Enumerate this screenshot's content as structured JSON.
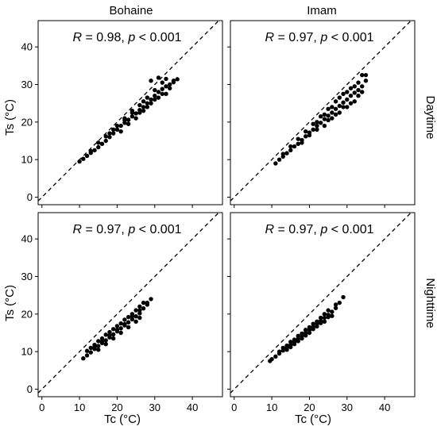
{
  "figure": {
    "x_axis_title": "Tc (°C)",
    "y_axis_title": "Ts (°C)",
    "column_titles": [
      "Bohaine",
      "Imam"
    ],
    "row_titles": [
      "Daytime",
      "Nighttime"
    ]
  },
  "chart_data": [
    {
      "type": "scatter",
      "site": "Bohaine",
      "period": "Daytime",
      "annotation": {
        "r_text": "R = 0.98, ",
        "p_label": "p",
        "p_text": " < 0.001"
      },
      "xlim": [
        -1,
        48
      ],
      "ylim": [
        -2,
        47
      ],
      "xticks": [
        0,
        10,
        20,
        30,
        40
      ],
      "yticks": [
        0,
        10,
        20,
        30,
        40
      ],
      "reference_line": "1:1 dashed",
      "x_range_observed": [
        10,
        36
      ],
      "y_range_observed": [
        9,
        32
      ],
      "points": [
        [
          10,
          9.5
        ],
        [
          11,
          10.2
        ],
        [
          12,
          11
        ],
        [
          13,
          11.8
        ],
        [
          14,
          12.5
        ],
        [
          15,
          13.3
        ],
        [
          16,
          14.2
        ],
        [
          17,
          15
        ],
        [
          18,
          16
        ],
        [
          19,
          17
        ],
        [
          20,
          18
        ],
        [
          21,
          19
        ],
        [
          22,
          19.8
        ],
        [
          23,
          20.6
        ],
        [
          24,
          21.5
        ],
        [
          25,
          22.3
        ],
        [
          26,
          23.2
        ],
        [
          27,
          24
        ],
        [
          28,
          25
        ],
        [
          29,
          26
        ],
        [
          30,
          27
        ],
        [
          31,
          28
        ],
        [
          32,
          28.8
        ],
        [
          33,
          29.5
        ],
        [
          34,
          30
        ],
        [
          35,
          30.6
        ],
        [
          36,
          31.4
        ],
        [
          18,
          17
        ],
        [
          20,
          19
        ],
        [
          22,
          21
        ],
        [
          24,
          22.5
        ],
        [
          26,
          24.5
        ],
        [
          28,
          26.5
        ],
        [
          30,
          28.5
        ],
        [
          32,
          30.5
        ],
        [
          29,
          31
        ],
        [
          31,
          31.8
        ],
        [
          25,
          21
        ],
        [
          27,
          23
        ],
        [
          29,
          25
        ],
        [
          31,
          26.5
        ],
        [
          33,
          27.5
        ],
        [
          34,
          29
        ],
        [
          35,
          31
        ],
        [
          21,
          17.5
        ],
        [
          23,
          19.5
        ],
        [
          17,
          16.2
        ],
        [
          15,
          14.5
        ],
        [
          13,
          12.3
        ],
        [
          19,
          18
        ],
        [
          26,
          22.5
        ],
        [
          28,
          24
        ],
        [
          30,
          26
        ],
        [
          32,
          27.5
        ],
        [
          33,
          31.5
        ],
        [
          24,
          23
        ],
        [
          22,
          20.5
        ],
        [
          27,
          25.5
        ]
      ]
    },
    {
      "type": "scatter",
      "site": "Imam",
      "period": "Daytime",
      "annotation": {
        "r_text": "R = 0.97, ",
        "p_label": "p",
        "p_text": " < 0.001"
      },
      "xlim": [
        -1,
        48
      ],
      "ylim": [
        -2,
        47
      ],
      "xticks": [
        0,
        10,
        20,
        30,
        40
      ],
      "yticks": [
        0,
        10,
        20,
        30,
        40
      ],
      "reference_line": "1:1 dashed",
      "x_range_observed": [
        11,
        35
      ],
      "y_range_observed": [
        9,
        33
      ],
      "points": [
        [
          11,
          9
        ],
        [
          12,
          10
        ],
        [
          13,
          10.8
        ],
        [
          14,
          11.7
        ],
        [
          15,
          12.5
        ],
        [
          16,
          13.5
        ],
        [
          17,
          14.2
        ],
        [
          18,
          15.2
        ],
        [
          19,
          16.2
        ],
        [
          20,
          17.2
        ],
        [
          21,
          18
        ],
        [
          22,
          19
        ],
        [
          23,
          19.8
        ],
        [
          24,
          20.8
        ],
        [
          25,
          21.7
        ],
        [
          26,
          22.5
        ],
        [
          27,
          23.5
        ],
        [
          28,
          24.3
        ],
        [
          29,
          25.2
        ],
        [
          30,
          26
        ],
        [
          31,
          27
        ],
        [
          32,
          27.8
        ],
        [
          33,
          28.5
        ],
        [
          34,
          29.5
        ],
        [
          35,
          31
        ],
        [
          34,
          32.5
        ],
        [
          33,
          30.5
        ],
        [
          19,
          17.5
        ],
        [
          21,
          19.5
        ],
        [
          23,
          21.5
        ],
        [
          25,
          23.5
        ],
        [
          27,
          25.5
        ],
        [
          29,
          27.5
        ],
        [
          31,
          29
        ],
        [
          24,
          19
        ],
        [
          26,
          21
        ],
        [
          28,
          22.5
        ],
        [
          30,
          24
        ],
        [
          32,
          25.5
        ],
        [
          33,
          27
        ],
        [
          34,
          28
        ],
        [
          35,
          32.5
        ],
        [
          18,
          14.5
        ],
        [
          20,
          16.5
        ],
        [
          22,
          18
        ],
        [
          17,
          15.5
        ],
        [
          15,
          13.5
        ],
        [
          13,
          11.5
        ],
        [
          26,
          24
        ],
        [
          28,
          26.5
        ],
        [
          30,
          28
        ],
        [
          32,
          29.5
        ],
        [
          25,
          20.5
        ],
        [
          27,
          22
        ],
        [
          29,
          24
        ],
        [
          31,
          25
        ],
        [
          22,
          20
        ],
        [
          24,
          22
        ]
      ]
    },
    {
      "type": "scatter",
      "site": "Bohaine",
      "period": "Nighttime",
      "annotation": {
        "r_text": "R = 0.97, ",
        "p_label": "p",
        "p_text": " < 0.001"
      },
      "xlim": [
        -1,
        48
      ],
      "ylim": [
        -2,
        47
      ],
      "xticks": [
        0,
        10,
        20,
        30,
        40
      ],
      "yticks": [
        0,
        10,
        20,
        30,
        40
      ],
      "reference_line": "1:1 dashed",
      "x_range_observed": [
        11,
        29
      ],
      "y_range_observed": [
        8,
        24
      ],
      "points": [
        [
          11,
          8.2
        ],
        [
          12,
          9
        ],
        [
          13,
          9.8
        ],
        [
          14,
          10.7
        ],
        [
          15,
          11.5
        ],
        [
          16,
          12.3
        ],
        [
          17,
          13
        ],
        [
          18,
          13.8
        ],
        [
          19,
          14.6
        ],
        [
          20,
          15.4
        ],
        [
          21,
          16.2
        ],
        [
          22,
          17
        ],
        [
          23,
          17.8
        ],
        [
          24,
          18.6
        ],
        [
          25,
          19.4
        ],
        [
          26,
          20.2
        ],
        [
          27,
          21.5
        ],
        [
          28,
          23
        ],
        [
          29,
          24
        ],
        [
          14,
          11.8
        ],
        [
          16,
          13.5
        ],
        [
          18,
          15.2
        ],
        [
          20,
          16.8
        ],
        [
          22,
          18.5
        ],
        [
          24,
          20
        ],
        [
          26,
          22
        ],
        [
          27,
          23
        ],
        [
          15,
          10.5
        ],
        [
          17,
          12
        ],
        [
          19,
          13.5
        ],
        [
          21,
          15
        ],
        [
          23,
          16.5
        ],
        [
          25,
          18
        ],
        [
          26,
          19
        ],
        [
          13,
          11
        ],
        [
          15,
          12.8
        ],
        [
          17,
          14.5
        ],
        [
          19,
          16
        ],
        [
          21,
          17.5
        ],
        [
          23,
          19.2
        ],
        [
          25,
          21
        ],
        [
          12,
          10.2
        ],
        [
          14,
          11.2
        ],
        [
          16,
          12.8
        ],
        [
          18,
          14.3
        ],
        [
          20,
          15.8
        ],
        [
          22,
          17.3
        ],
        [
          24,
          19.4
        ],
        [
          26,
          21
        ],
        [
          28,
          22.5
        ]
      ]
    },
    {
      "type": "scatter",
      "site": "Imam",
      "period": "Nighttime",
      "annotation": {
        "r_text": "R = 0.97, ",
        "p_label": "p",
        "p_text": " < 0.001"
      },
      "xlim": [
        -1,
        48
      ],
      "ylim": [
        -2,
        47
      ],
      "xticks": [
        0,
        10,
        20,
        30,
        40
      ],
      "yticks": [
        0,
        10,
        20,
        30,
        40
      ],
      "reference_line": "1:1 dashed",
      "x_range_observed": [
        9,
        29
      ],
      "y_range_observed": [
        7,
        24.5
      ],
      "points": [
        [
          9.5,
          7.5
        ],
        [
          10,
          8
        ],
        [
          11,
          8.7
        ],
        [
          12,
          9.5
        ],
        [
          13,
          10.3
        ],
        [
          14,
          11
        ],
        [
          15,
          11.8
        ],
        [
          16,
          12.6
        ],
        [
          17,
          13.4
        ],
        [
          18,
          14.2
        ],
        [
          19,
          15
        ],
        [
          20,
          15.8
        ],
        [
          21,
          16.6
        ],
        [
          22,
          17.4
        ],
        [
          23,
          18.2
        ],
        [
          24,
          19
        ],
        [
          25,
          19.8
        ],
        [
          26,
          20.6
        ],
        [
          27,
          21.6
        ],
        [
          28,
          23
        ],
        [
          29,
          24.5
        ],
        [
          13,
          11
        ],
        [
          15,
          12.6
        ],
        [
          17,
          14.2
        ],
        [
          19,
          15.8
        ],
        [
          21,
          17.4
        ],
        [
          23,
          19
        ],
        [
          25,
          21
        ],
        [
          14,
          10.5
        ],
        [
          16,
          12
        ],
        [
          18,
          13.5
        ],
        [
          20,
          15
        ],
        [
          22,
          16.7
        ],
        [
          24,
          18
        ],
        [
          26,
          19.5
        ],
        [
          12,
          10
        ],
        [
          14,
          11.6
        ],
        [
          16,
          13.2
        ],
        [
          18,
          14.8
        ],
        [
          20,
          16.5
        ],
        [
          22,
          18
        ],
        [
          24,
          20
        ],
        [
          27,
          22.5
        ],
        [
          15,
          11.2
        ],
        [
          17,
          12.8
        ],
        [
          19,
          14.3
        ],
        [
          21,
          16
        ],
        [
          23,
          17.6
        ],
        [
          25,
          19.2
        ]
      ]
    }
  ]
}
